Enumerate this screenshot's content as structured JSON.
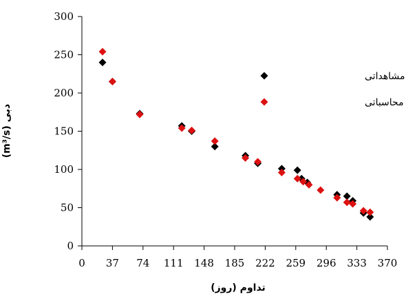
{
  "chart_data": {
    "type": "scatter",
    "xlabel": "تداوم (روز)",
    "ylabel": "دبی (m³/s)",
    "xlim": [
      0,
      370
    ],
    "ylim": [
      0,
      300
    ],
    "x_ticks": [
      0,
      37,
      74,
      111,
      148,
      185,
      222,
      259,
      296,
      333,
      370
    ],
    "y_ticks": [
      0,
      50,
      100,
      150,
      200,
      250,
      300
    ],
    "grid": false,
    "legend_position": "top-right",
    "series": [
      {
        "name": "داده های مشاهداتی",
        "color": "#000000",
        "marker": "diamond",
        "points": [
          [
            25,
            240
          ],
          [
            37,
            215
          ],
          [
            70,
            173
          ],
          [
            121,
            157
          ],
          [
            133,
            150
          ],
          [
            161,
            130
          ],
          [
            198,
            118
          ],
          [
            213,
            108
          ],
          [
            242,
            101
          ],
          [
            261,
            99
          ],
          [
            266,
            88
          ],
          [
            273,
            83
          ],
          [
            309,
            67
          ],
          [
            321,
            65
          ],
          [
            328,
            59
          ],
          [
            341,
            43
          ],
          [
            349,
            38
          ]
        ]
      },
      {
        "name": "داده های محاسباتی",
        "color": "#dd1111",
        "marker": "diamond",
        "points": [
          [
            25,
            254
          ],
          [
            37,
            215
          ],
          [
            70,
            172
          ],
          [
            121,
            154
          ],
          [
            133,
            151
          ],
          [
            161,
            137
          ],
          [
            198,
            115
          ],
          [
            213,
            110
          ],
          [
            242,
            96
          ],
          [
            261,
            88
          ],
          [
            268,
            84
          ],
          [
            275,
            80
          ],
          [
            289,
            73
          ],
          [
            309,
            63
          ],
          [
            321,
            57
          ],
          [
            328,
            55
          ],
          [
            341,
            46
          ],
          [
            349,
            44
          ]
        ]
      }
    ]
  }
}
